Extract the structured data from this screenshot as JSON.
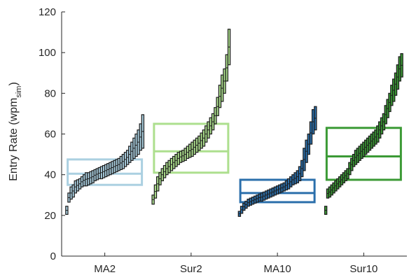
{
  "chart_data": {
    "type": "box",
    "title": "",
    "ylabel": {
      "text": "Entry Rate (wpm",
      "subscript": "sim",
      "suffix": ")"
    },
    "ylim": [
      0,
      120
    ],
    "yticks": [
      0,
      20,
      40,
      60,
      80,
      100,
      120
    ],
    "grid": false,
    "categories": [
      "MA2",
      "Sur2",
      "MA10",
      "Sur10"
    ],
    "colors": [
      "#abd0e1",
      "#addf8e",
      "#2b6fab",
      "#3b9a35"
    ],
    "boxes": [
      {
        "q1": 35.0,
        "median": 40.5,
        "q3": 47.5
      },
      {
        "q1": 41.0,
        "median": 51.5,
        "q3": 65.0
      },
      {
        "q1": 26.5,
        "median": 31.0,
        "q3": 37.5
      },
      {
        "q1": 37.5,
        "median": 49.0,
        "q3": 63.0
      }
    ],
    "participants": [
      [
        [
          20.5,
          24.5
        ],
        [
          26.5,
          31.0
        ],
        [
          28.0,
          34.0
        ],
        [
          29.0,
          35.0
        ],
        [
          31.0,
          37.0
        ],
        [
          32.0,
          37.5
        ],
        [
          33.0,
          38.0
        ],
        [
          34.0,
          39.0
        ],
        [
          34.5,
          40.0
        ],
        [
          34.5,
          41.0
        ],
        [
          35.0,
          41.0
        ],
        [
          35.5,
          41.5
        ],
        [
          36.0,
          42.0
        ],
        [
          37.0,
          42.5
        ],
        [
          37.5,
          43.0
        ],
        [
          38.0,
          43.5
        ],
        [
          38.0,
          44.0
        ],
        [
          38.5,
          44.5
        ],
        [
          39.0,
          45.0
        ],
        [
          39.5,
          45.5
        ],
        [
          40.0,
          46.0
        ],
        [
          40.5,
          46.5
        ],
        [
          41.0,
          47.0
        ],
        [
          41.5,
          47.5
        ],
        [
          42.0,
          48.0
        ],
        [
          42.5,
          49.0
        ],
        [
          43.0,
          50.0
        ],
        [
          44.0,
          51.0
        ],
        [
          45.0,
          52.0
        ],
        [
          46.0,
          54.0
        ],
        [
          47.0,
          56.0
        ],
        [
          48.0,
          58.0
        ],
        [
          49.0,
          60.0
        ],
        [
          50.0,
          62.0
        ],
        [
          52.0,
          65.0
        ],
        [
          53.0,
          69.5
        ]
      ],
      [
        [
          25.5,
          30.0
        ],
        [
          28.5,
          35.0
        ],
        [
          32.0,
          39.0
        ],
        [
          35.0,
          41.0
        ],
        [
          37.0,
          43.0
        ],
        [
          38.5,
          44.5
        ],
        [
          40.0,
          46.0
        ],
        [
          41.0,
          47.0
        ],
        [
          42.0,
          48.0
        ],
        [
          43.0,
          49.0
        ],
        [
          44.0,
          50.0
        ],
        [
          45.0,
          51.0
        ],
        [
          46.0,
          51.5
        ],
        [
          46.5,
          52.0
        ],
        [
          47.0,
          53.0
        ],
        [
          48.0,
          54.0
        ],
        [
          48.5,
          55.0
        ],
        [
          49.0,
          56.0
        ],
        [
          50.0,
          57.0
        ],
        [
          51.0,
          58.0
        ],
        [
          52.0,
          59.0
        ],
        [
          53.0,
          60.5
        ],
        [
          54.0,
          62.0
        ],
        [
          56.0,
          64.0
        ],
        [
          58.0,
          66.0
        ],
        [
          60.0,
          68.0
        ],
        [
          62.0,
          70.0
        ],
        [
          65.0,
          73.0
        ],
        [
          69.0,
          78.0
        ],
        [
          73.0,
          84.0
        ],
        [
          76.0,
          89.0
        ],
        [
          80.0,
          92.0
        ],
        [
          86.0,
          99.0
        ],
        [
          94.0,
          111.5
        ]
      ],
      [
        [
          19.5,
          22.0
        ],
        [
          21.0,
          24.5
        ],
        [
          22.5,
          26.0
        ],
        [
          23.5,
          27.0
        ],
        [
          24.5,
          28.0
        ],
        [
          25.0,
          28.5
        ],
        [
          25.5,
          29.0
        ],
        [
          26.0,
          29.5
        ],
        [
          26.5,
          30.0
        ],
        [
          27.0,
          30.5
        ],
        [
          27.0,
          31.0
        ],
        [
          27.5,
          31.5
        ],
        [
          28.0,
          32.0
        ],
        [
          28.5,
          32.5
        ],
        [
          29.0,
          33.0
        ],
        [
          29.5,
          33.5
        ],
        [
          30.0,
          34.0
        ],
        [
          30.5,
          34.5
        ],
        [
          31.0,
          35.0
        ],
        [
          31.5,
          35.5
        ],
        [
          32.0,
          36.0
        ],
        [
          32.5,
          37.0
        ],
        [
          33.0,
          38.0
        ],
        [
          34.0,
          39.0
        ],
        [
          35.0,
          40.0
        ],
        [
          35.5,
          41.0
        ],
        [
          36.0,
          42.0
        ],
        [
          37.0,
          44.0
        ],
        [
          39.0,
          47.0
        ],
        [
          42.0,
          53.0
        ],
        [
          46.0,
          57.0
        ],
        [
          50.0,
          60.0
        ],
        [
          55.0,
          66.0
        ],
        [
          60.0,
          72.0
        ],
        [
          62.0,
          73.5
        ]
      ],
      [
        [
          20.5,
          24.5
        ],
        [
          28.5,
          33.0
        ],
        [
          29.0,
          34.0
        ],
        [
          30.0,
          35.0
        ],
        [
          31.0,
          36.0
        ],
        [
          32.0,
          37.0
        ],
        [
          33.0,
          38.0
        ],
        [
          34.0,
          39.0
        ],
        [
          35.0,
          40.0
        ],
        [
          36.0,
          41.0
        ],
        [
          37.0,
          42.0
        ],
        [
          38.0,
          43.0
        ],
        [
          40.0,
          46.0
        ],
        [
          42.0,
          48.0
        ],
        [
          44.0,
          50.0
        ],
        [
          45.0,
          52.0
        ],
        [
          46.0,
          53.0
        ],
        [
          47.0,
          54.0
        ],
        [
          48.0,
          55.0
        ],
        [
          49.0,
          56.0
        ],
        [
          50.0,
          57.0
        ],
        [
          51.0,
          58.0
        ],
        [
          52.0,
          59.0
        ],
        [
          53.0,
          60.0
        ],
        [
          54.0,
          61.0
        ],
        [
          55.0,
          62.0
        ],
        [
          56.0,
          64.0
        ],
        [
          58.0,
          66.0
        ],
        [
          60.0,
          68.0
        ],
        [
          62.0,
          70.0
        ],
        [
          65.0,
          74.0
        ],
        [
          68.0,
          77.0
        ],
        [
          71.0,
          80.0
        ],
        [
          74.0,
          84.0
        ],
        [
          76.0,
          87.0
        ],
        [
          79.0,
          90.0
        ],
        [
          82.0,
          94.0
        ],
        [
          86.0,
          98.0
        ],
        [
          88.0,
          99.5
        ]
      ]
    ]
  }
}
